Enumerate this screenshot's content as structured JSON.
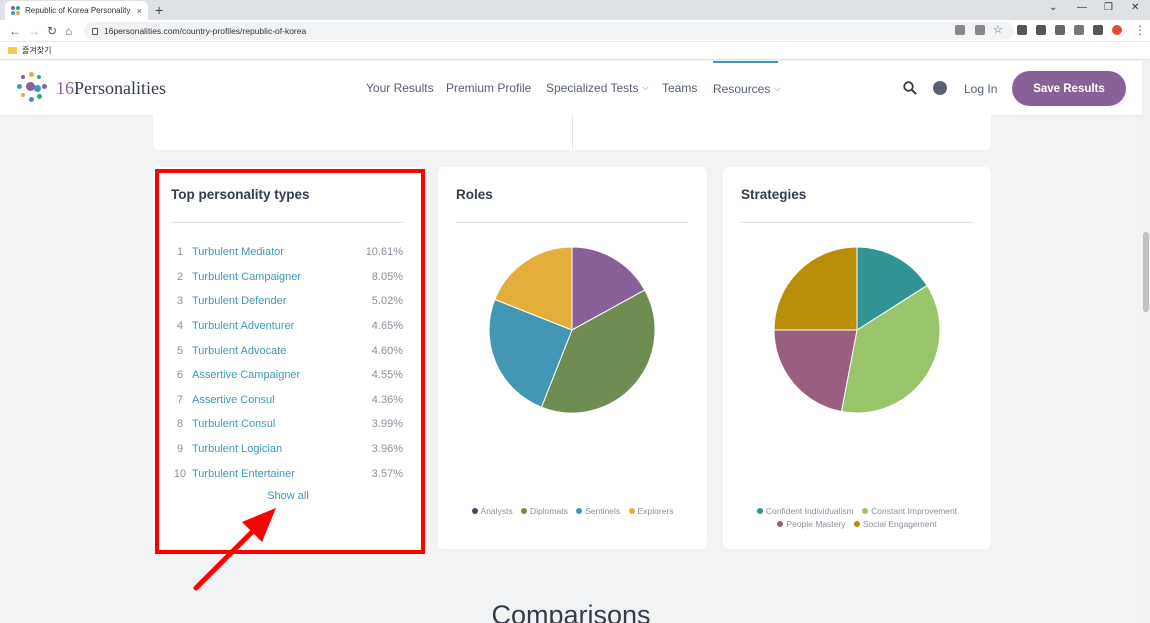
{
  "browser": {
    "tab_title": "Republic of Korea Personality P",
    "url": "16personalities.com/country-profiles/republic-of-korea",
    "bookmark": "즐겨찾기",
    "new_tab": "+",
    "tab_close": "×"
  },
  "header": {
    "brand_num": "16",
    "brand_name": "Personalities",
    "nav": [
      "Your Results",
      "Premium Profile",
      "Specialized Tests",
      "Teams",
      "Resources"
    ],
    "login": "Log In",
    "save_button": "Save Results"
  },
  "cards": {
    "types": {
      "title": "Top personality types",
      "items": [
        {
          "rank": "1",
          "name": "Turbulent Mediator",
          "pct": "10.61%"
        },
        {
          "rank": "2",
          "name": "Turbulent Campaigner",
          "pct": "8.05%"
        },
        {
          "rank": "3",
          "name": "Turbulent Defender",
          "pct": "5.02%"
        },
        {
          "rank": "4",
          "name": "Turbulent Adventurer",
          "pct": "4.65%"
        },
        {
          "rank": "5",
          "name": "Turbulent Advocate",
          "pct": "4.60%"
        },
        {
          "rank": "6",
          "name": "Assertive Campaigner",
          "pct": "4.55%"
        },
        {
          "rank": "7",
          "name": "Assertive Consul",
          "pct": "4.36%"
        },
        {
          "rank": "8",
          "name": "Turbulent Consul",
          "pct": "3.99%"
        },
        {
          "rank": "9",
          "name": "Turbulent Logician",
          "pct": "3.96%"
        },
        {
          "rank": "10",
          "name": "Turbulent Entertainer",
          "pct": "3.57%"
        }
      ],
      "show_all": "Show all"
    },
    "roles": {
      "title": "Roles",
      "legend": [
        "Analysts",
        "Diplomats",
        "Sentinels",
        "Explorers"
      ]
    },
    "strategies": {
      "title": "Strategies",
      "legend": [
        "Confident Individualism",
        "Constant Improvement",
        "People Mastery",
        "Social Engagement"
      ]
    }
  },
  "section_heading": "Comparisons",
  "colors": {
    "purple": "#88619a",
    "diplomats": "#6f8d52",
    "sentinels": "#4298b4",
    "explorers": "#e4ae3a",
    "analysts_dot": "#5a3f66",
    "confident": "#33a474",
    "constant": "#9ac46a",
    "people": "#9a5e7e",
    "social": "#b88e09",
    "highlight": "#ff0000"
  },
  "chart_data": [
    {
      "type": "pie",
      "title": "Roles",
      "categories": [
        "Analysts",
        "Diplomats",
        "Sentinels",
        "Explorers"
      ],
      "values": [
        17,
        39,
        25,
        19
      ],
      "colors": [
        "#88619a",
        "#6f8d52",
        "#4298b4",
        "#e4ae3a"
      ]
    },
    {
      "type": "pie",
      "title": "Strategies",
      "categories": [
        "Confident Individualism",
        "Constant Improvement",
        "People Mastery",
        "Social Engagement"
      ],
      "values": [
        16,
        37,
        22,
        25
      ],
      "colors": [
        "#339494",
        "#9ac46a",
        "#9a5e7e",
        "#b88e09"
      ]
    }
  ]
}
